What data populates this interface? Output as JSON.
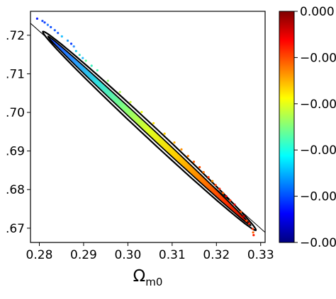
{
  "chart_data": {
    "type": "scatter",
    "title": "",
    "xlabel": {
      "symbol": "Ω",
      "subscript": "m0"
    },
    "ylabel": "",
    "xlim": [
      0.278,
      0.331
    ],
    "ylim": [
      0.6663,
      0.7262
    ],
    "xticks": [
      0.28,
      0.29,
      0.3,
      0.31,
      0.32,
      0.33
    ],
    "xtick_labels": [
      "0.28",
      "0.29",
      "0.30",
      "0.31",
      "0.32",
      "0.33"
    ],
    "yticks": [
      0.72,
      0.71,
      0.7,
      0.69,
      0.68,
      0.67
    ],
    "ytick_labels": [
      ".72",
      ".71",
      ".70",
      ".69",
      ".68",
      ".67"
    ],
    "grid": false,
    "colormap": "jet",
    "colorbar": {
      "labels": [
        "0.000",
        "−0.00",
        "−0.00",
        "−0.00",
        "−0.00",
        "−0.00"
      ],
      "stops": [
        "#7f0000",
        "#ff0000",
        "#ff7f00",
        "#ffff00",
        "#7fff7f",
        "#00ffff",
        "#007fff",
        "#0000ff",
        "#00007f"
      ]
    },
    "reference_line": {
      "x": [
        0.278,
        0.331
      ],
      "y": [
        0.7231,
        0.6689
      ],
      "color": "#000000"
    },
    "degeneracy_band": {
      "x_start": 0.2815,
      "x_end": 0.3282,
      "slope": -1.07,
      "y_at_0_30": 0.7004
    },
    "scatter_points": [
      {
        "x": 0.2795,
        "y": 0.7243,
        "c": "#1020ff"
      },
      {
        "x": 0.2807,
        "y": 0.7237,
        "c": "#1a50ff"
      },
      {
        "x": 0.2812,
        "y": 0.7233,
        "c": "#1040ff"
      },
      {
        "x": 0.2819,
        "y": 0.7227,
        "c": "#2a7fff"
      },
      {
        "x": 0.2826,
        "y": 0.7221,
        "c": "#1050ff"
      },
      {
        "x": 0.2835,
        "y": 0.7213,
        "c": "#1a60ff"
      },
      {
        "x": 0.2842,
        "y": 0.7206,
        "c": "#2060ff"
      },
      {
        "x": 0.2851,
        "y": 0.7197,
        "c": "#20c0ff"
      },
      {
        "x": 0.2864,
        "y": 0.7186,
        "c": "#20a0ff"
      },
      {
        "x": 0.2872,
        "y": 0.7178,
        "c": "#1040ff"
      },
      {
        "x": 0.2878,
        "y": 0.7171,
        "c": "#3090ff"
      },
      {
        "x": 0.2883,
        "y": 0.7159,
        "c": "#20d0f0"
      },
      {
        "x": 0.2891,
        "y": 0.7149,
        "c": "#40e0d0"
      },
      {
        "x": 0.2898,
        "y": 0.7141,
        "c": "#30c0ff"
      },
      {
        "x": 0.2905,
        "y": 0.7134,
        "c": "#60ffa0"
      },
      {
        "x": 0.2918,
        "y": 0.7121,
        "c": "#40f0c0"
      },
      {
        "x": 0.2931,
        "y": 0.7109,
        "c": "#50ffb0"
      },
      {
        "x": 0.2955,
        "y": 0.7082,
        "c": "#90ff70"
      },
      {
        "x": 0.2982,
        "y": 0.7053,
        "c": "#b0ff50"
      },
      {
        "x": 0.3006,
        "y": 0.7027,
        "c": "#d0ff30"
      },
      {
        "x": 0.3031,
        "y": 0.7001,
        "c": "#f0ff10"
      },
      {
        "x": 0.3058,
        "y": 0.6972,
        "c": "#ffe000"
      },
      {
        "x": 0.3083,
        "y": 0.6945,
        "c": "#ffd000"
      },
      {
        "x": 0.3105,
        "y": 0.6922,
        "c": "#ffb000"
      },
      {
        "x": 0.3121,
        "y": 0.6904,
        "c": "#ff9000"
      },
      {
        "x": 0.3136,
        "y": 0.6887,
        "c": "#ff8000"
      },
      {
        "x": 0.3149,
        "y": 0.6872,
        "c": "#ff6000"
      },
      {
        "x": 0.3162,
        "y": 0.6858,
        "c": "#ff5000"
      },
      {
        "x": 0.3171,
        "y": 0.6845,
        "c": "#ff7000"
      },
      {
        "x": 0.3182,
        "y": 0.6832,
        "c": "#ff3000"
      },
      {
        "x": 0.3191,
        "y": 0.6822,
        "c": "#ff9000"
      },
      {
        "x": 0.3198,
        "y": 0.6812,
        "c": "#ff4000"
      },
      {
        "x": 0.3207,
        "y": 0.6802,
        "c": "#ff2000"
      },
      {
        "x": 0.3215,
        "y": 0.6791,
        "c": "#ff6000"
      },
      {
        "x": 0.3222,
        "y": 0.6783,
        "c": "#e00000"
      },
      {
        "x": 0.3231,
        "y": 0.6772,
        "c": "#ff3000"
      },
      {
        "x": 0.3241,
        "y": 0.6761,
        "c": "#d00000"
      },
      {
        "x": 0.3255,
        "y": 0.6742,
        "c": "#ff5000"
      },
      {
        "x": 0.3262,
        "y": 0.6731,
        "c": "#c00000"
      },
      {
        "x": 0.3268,
        "y": 0.6719,
        "c": "#ff4000"
      },
      {
        "x": 0.3274,
        "y": 0.6712,
        "c": "#ff2000"
      },
      {
        "x": 0.3282,
        "y": 0.6698,
        "c": "#ff3000"
      },
      {
        "x": 0.3283,
        "y": 0.6689,
        "c": "#ff6000"
      },
      {
        "x": 0.3284,
        "y": 0.6682,
        "c": "#ff2000"
      }
    ]
  }
}
